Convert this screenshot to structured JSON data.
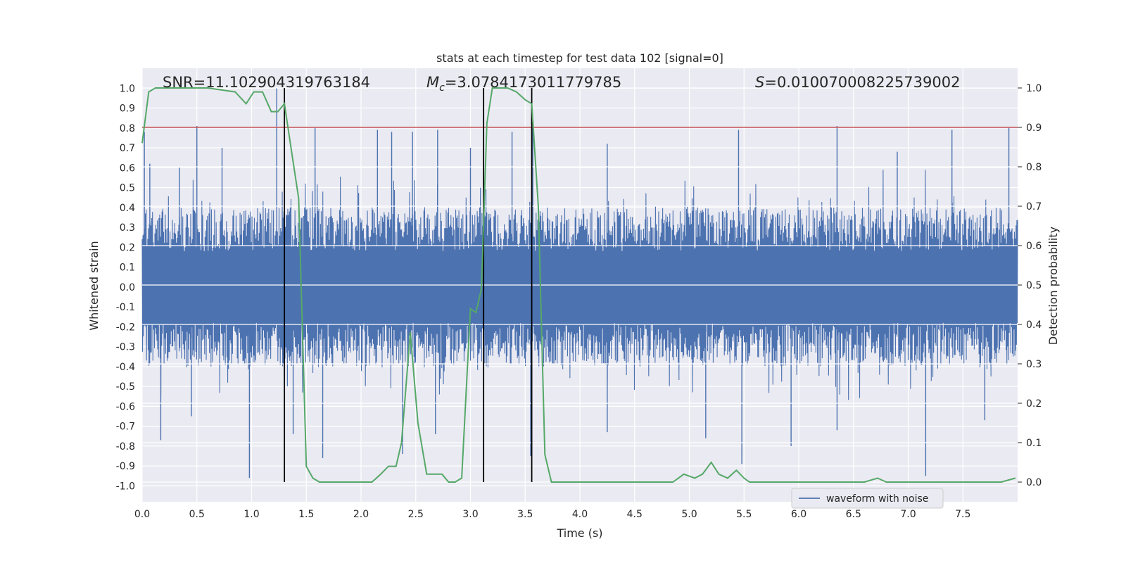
{
  "chart_data": {
    "type": "line",
    "title": "stats at each timestep for test data 102 [signal=0]",
    "xlabel": "Time (s)",
    "ylabel_left": "Whitened strain",
    "ylabel_right": "Detection probability",
    "xlim": [
      0,
      8
    ],
    "ylim_left": [
      -1.08,
      1.1
    ],
    "ylim_right": [
      -0.05,
      1.05
    ],
    "x_ticks": [
      "0.0",
      "0.5",
      "1.0",
      "1.5",
      "2.0",
      "2.5",
      "3.0",
      "3.5",
      "4.0",
      "4.5",
      "5.0",
      "5.5",
      "6.0",
      "6.5",
      "7.0",
      "7.5"
    ],
    "x_tick_values": [
      0,
      0.5,
      1,
      1.5,
      2,
      2.5,
      3,
      3.5,
      4,
      4.5,
      5,
      5.5,
      6,
      6.5,
      7,
      7.5
    ],
    "y_ticks_left": [
      "-1.0",
      "-0.9",
      "-0.8",
      "-0.7",
      "-0.6",
      "-0.5",
      "-0.4",
      "-0.3",
      "-0.2",
      "-0.1",
      "0.0",
      "0.1",
      "0.2",
      "0.3",
      "0.4",
      "0.5",
      "0.6",
      "0.7",
      "0.8",
      "0.9",
      "1.0"
    ],
    "y_tick_values_left": [
      -1.0,
      -0.9,
      -0.8,
      -0.7,
      -0.6,
      -0.5,
      -0.4,
      -0.3,
      -0.2,
      -0.1,
      0.0,
      0.1,
      0.2,
      0.3,
      0.4,
      0.5,
      0.6,
      0.7,
      0.8,
      0.9,
      1.0
    ],
    "y_ticks_right": [
      "0.0",
      "0.1",
      "0.2",
      "0.3",
      "0.4",
      "0.5",
      "0.6",
      "0.7",
      "0.8",
      "0.9",
      "1.0"
    ],
    "y_tick_values_right": [
      0.0,
      0.1,
      0.2,
      0.3,
      0.4,
      0.5,
      0.6,
      0.7,
      0.8,
      0.9,
      1.0
    ],
    "annotations": {
      "snr": "SNR=11.102904319763184",
      "mc_symbol": "M",
      "mc_sub": "c",
      "mc_value": "=3.0784173011779785",
      "s_symbol": "S",
      "s_value": "=0.010070008225739002"
    },
    "threshold": {
      "value": 0.9,
      "axis": "right",
      "color": "#c44e52"
    },
    "vertical_markers": [
      1.3,
      3.12,
      3.56
    ],
    "legend": {
      "label": "waveform with noise",
      "placement": "lower-right"
    },
    "waveform": {
      "name": "waveform with noise",
      "color": "#4c72b0",
      "x_range": [
        0,
        8
      ],
      "core_amplitude": 0.4,
      "spikes": [
        {
          "x": 0.02,
          "v": 0.78
        },
        {
          "x": 0.07,
          "v": 0.62
        },
        {
          "x": 0.34,
          "v": 0.6
        },
        {
          "x": 0.5,
          "v": 0.81
        },
        {
          "x": 0.73,
          "v": 0.7
        },
        {
          "x": 1.23,
          "v": 1.0
        },
        {
          "x": 1.58,
          "v": 0.8
        },
        {
          "x": 2.15,
          "v": 0.79
        },
        {
          "x": 2.28,
          "v": 0.78
        },
        {
          "x": 2.47,
          "v": 0.78
        },
        {
          "x": 2.7,
          "v": 0.79
        },
        {
          "x": 3.0,
          "v": 0.7
        },
        {
          "x": 3.38,
          "v": 0.78
        },
        {
          "x": 3.57,
          "v": 0.8
        },
        {
          "x": 4.25,
          "v": 0.72
        },
        {
          "x": 5.45,
          "v": 0.79
        },
        {
          "x": 6.35,
          "v": 0.81
        },
        {
          "x": 6.9,
          "v": 0.68
        },
        {
          "x": 7.4,
          "v": 0.79
        },
        {
          "x": 7.92,
          "v": 0.8
        },
        {
          "x": 0.17,
          "v": -0.77
        },
        {
          "x": 0.45,
          "v": -0.65
        },
        {
          "x": 0.98,
          "v": -0.96
        },
        {
          "x": 1.38,
          "v": -0.74
        },
        {
          "x": 1.65,
          "v": -0.86
        },
        {
          "x": 2.38,
          "v": -0.84
        },
        {
          "x": 2.68,
          "v": -0.74
        },
        {
          "x": 3.55,
          "v": -0.85
        },
        {
          "x": 4.25,
          "v": -0.73
        },
        {
          "x": 5.15,
          "v": -0.76
        },
        {
          "x": 5.48,
          "v": -0.89
        },
        {
          "x": 5.93,
          "v": -0.8
        },
        {
          "x": 6.35,
          "v": -0.72
        },
        {
          "x": 7.16,
          "v": -0.95
        },
        {
          "x": 7.7,
          "v": -0.67
        }
      ]
    },
    "series": [
      {
        "name": "detection probability",
        "axis": "right",
        "color": "#55a868",
        "x": [
          0.0,
          0.06,
          0.12,
          0.2,
          0.4,
          0.6,
          0.85,
          0.95,
          1.02,
          1.1,
          1.18,
          1.24,
          1.3,
          1.37,
          1.43,
          1.5,
          1.56,
          1.62,
          1.7,
          1.8,
          1.9,
          2.0,
          2.1,
          2.18,
          2.25,
          2.32,
          2.37,
          2.45,
          2.52,
          2.6,
          2.68,
          2.74,
          2.8,
          2.86,
          2.92,
          3.0,
          3.05,
          3.1,
          3.15,
          3.2,
          3.26,
          3.34,
          3.42,
          3.5,
          3.56,
          3.62,
          3.68,
          3.74,
          3.8,
          4.0,
          4.5,
          4.8,
          4.85,
          4.95,
          5.05,
          5.12,
          5.2,
          5.27,
          5.35,
          5.43,
          5.5,
          5.55,
          5.7,
          5.85,
          6.0,
          6.3,
          6.5,
          6.6,
          6.72,
          6.8,
          6.9,
          7.0,
          7.2,
          7.5,
          7.7,
          7.85,
          7.98
        ],
        "y": [
          0.86,
          0.99,
          1.0,
          1.0,
          1.0,
          1.0,
          0.99,
          0.96,
          0.99,
          0.99,
          0.94,
          0.94,
          0.96,
          0.83,
          0.72,
          0.04,
          0.01,
          0.0,
          0.0,
          0.0,
          0.0,
          0.0,
          0.0,
          0.02,
          0.04,
          0.04,
          0.1,
          0.38,
          0.15,
          0.02,
          0.02,
          0.02,
          0.0,
          0.0,
          0.01,
          0.44,
          0.43,
          0.49,
          0.91,
          1.0,
          1.0,
          1.0,
          0.99,
          0.97,
          0.96,
          0.7,
          0.07,
          0.0,
          0.0,
          0.0,
          0.0,
          0.0,
          0.0,
          0.02,
          0.01,
          0.02,
          0.05,
          0.02,
          0.01,
          0.03,
          0.01,
          0.0,
          0.0,
          0.0,
          0.0,
          0.0,
          0.0,
          0.0,
          0.01,
          0.0,
          0.0,
          0.0,
          0.0,
          0.0,
          0.0,
          0.0,
          0.01
        ]
      }
    ]
  }
}
